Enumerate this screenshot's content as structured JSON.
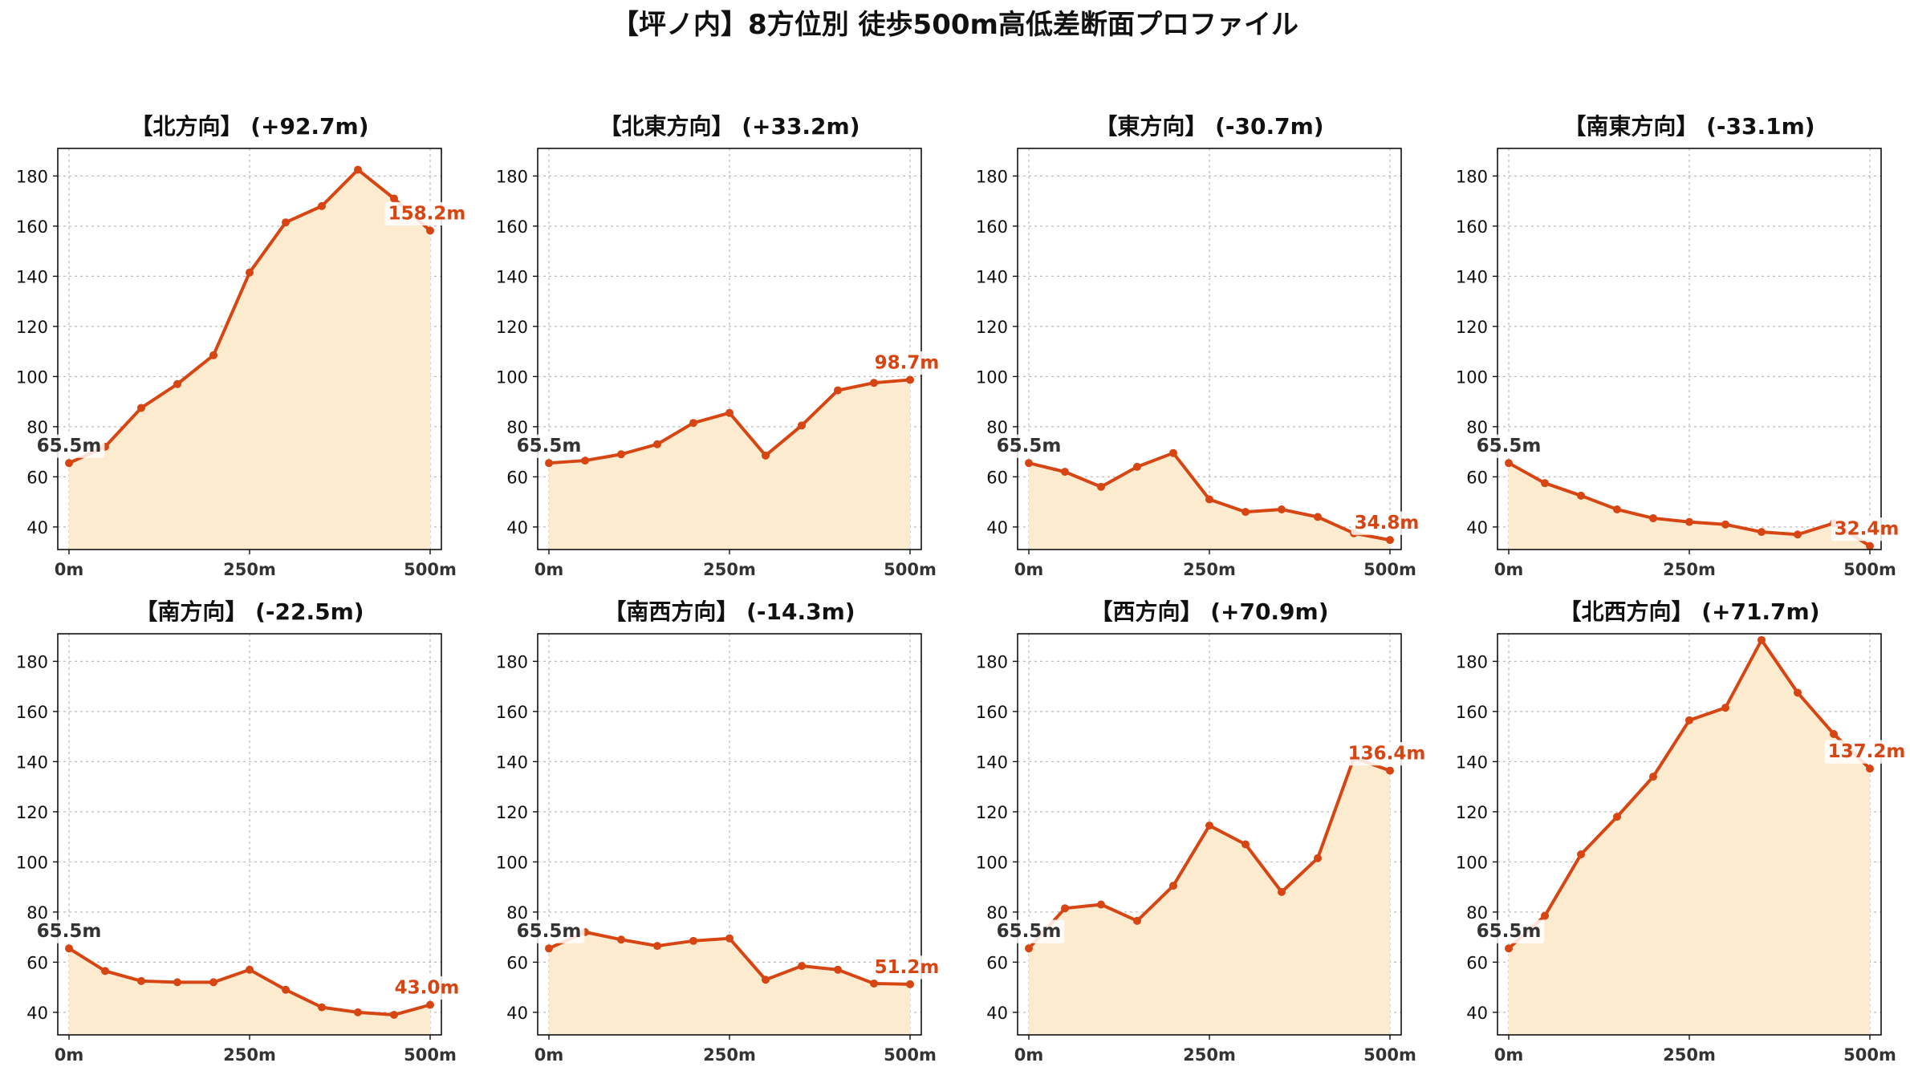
{
  "title": "【坪ノ内】8方位別 徒歩500m高低差断面プロファイル",
  "style": {
    "line_color": "#d64512",
    "fill_color": "#fdebd0",
    "grid_color": "#bbbbbb",
    "start_label_color": "#333333"
  },
  "chart_data": [
    {
      "type": "area",
      "title": "【北方向】 (+92.7m)",
      "x": [
        0,
        50,
        100,
        150,
        200,
        250,
        300,
        350,
        400,
        450,
        500
      ],
      "values": [
        65.5,
        72.0,
        87.5,
        97.0,
        108.5,
        141.5,
        161.5,
        168.0,
        182.5,
        171.0,
        158.2
      ],
      "xticks": [
        "0m",
        "250m",
        "500m"
      ],
      "yticks": [
        40,
        60,
        80,
        100,
        120,
        140,
        160,
        180
      ],
      "ylim": [
        31,
        191
      ],
      "start_label": "65.5m",
      "end_label": "158.2m",
      "grid": true
    },
    {
      "type": "area",
      "title": "【北東方向】 (+33.2m)",
      "x": [
        0,
        50,
        100,
        150,
        200,
        250,
        300,
        350,
        400,
        450,
        500
      ],
      "values": [
        65.5,
        66.5,
        69.0,
        73.0,
        81.5,
        85.5,
        68.5,
        80.5,
        94.5,
        97.5,
        98.7
      ],
      "xticks": [
        "0m",
        "250m",
        "500m"
      ],
      "yticks": [
        40,
        60,
        80,
        100,
        120,
        140,
        160,
        180
      ],
      "ylim": [
        31,
        191
      ],
      "start_label": "65.5m",
      "end_label": "98.7m",
      "grid": true
    },
    {
      "type": "area",
      "title": "【東方向】 (-30.7m)",
      "x": [
        0,
        50,
        100,
        150,
        200,
        250,
        300,
        350,
        400,
        450,
        500
      ],
      "values": [
        65.5,
        62.0,
        56.0,
        64.0,
        69.5,
        51.0,
        46.0,
        47.0,
        44.0,
        37.5,
        34.8
      ],
      "xticks": [
        "0m",
        "250m",
        "500m"
      ],
      "yticks": [
        40,
        60,
        80,
        100,
        120,
        140,
        160,
        180
      ],
      "ylim": [
        31,
        191
      ],
      "start_label": "65.5m",
      "end_label": "34.8m",
      "grid": true
    },
    {
      "type": "area",
      "title": "【南東方向】 (-33.1m)",
      "x": [
        0,
        50,
        100,
        150,
        200,
        250,
        300,
        350,
        400,
        450,
        500
      ],
      "values": [
        65.5,
        57.5,
        52.5,
        47.0,
        43.5,
        42.0,
        41.0,
        38.0,
        37.0,
        41.5,
        32.4
      ],
      "xticks": [
        "0m",
        "250m",
        "500m"
      ],
      "yticks": [
        40,
        60,
        80,
        100,
        120,
        140,
        160,
        180
      ],
      "ylim": [
        31,
        191
      ],
      "start_label": "65.5m",
      "end_label": "32.4m",
      "grid": true
    },
    {
      "type": "area",
      "title": "【南方向】 (-22.5m)",
      "x": [
        0,
        50,
        100,
        150,
        200,
        250,
        300,
        350,
        400,
        450,
        500
      ],
      "values": [
        65.5,
        56.5,
        52.5,
        52.0,
        52.0,
        57.0,
        49.0,
        42.0,
        40.0,
        39.0,
        43.0
      ],
      "xticks": [
        "0m",
        "250m",
        "500m"
      ],
      "yticks": [
        40,
        60,
        80,
        100,
        120,
        140,
        160,
        180
      ],
      "ylim": [
        31,
        191
      ],
      "start_label": "65.5m",
      "end_label": "43.0m",
      "grid": true
    },
    {
      "type": "area",
      "title": "【南西方向】 (-14.3m)",
      "x": [
        0,
        50,
        100,
        150,
        200,
        250,
        300,
        350,
        400,
        450,
        500
      ],
      "values": [
        65.5,
        72.0,
        69.0,
        66.5,
        68.5,
        69.5,
        53.0,
        58.5,
        57.0,
        51.5,
        51.2
      ],
      "xticks": [
        "0m",
        "250m",
        "500m"
      ],
      "yticks": [
        40,
        60,
        80,
        100,
        120,
        140,
        160,
        180
      ],
      "ylim": [
        31,
        191
      ],
      "start_label": "65.5m",
      "end_label": "51.2m",
      "grid": true
    },
    {
      "type": "area",
      "title": "【西方向】 (+70.9m)",
      "x": [
        0,
        50,
        100,
        150,
        200,
        250,
        300,
        350,
        400,
        450,
        500
      ],
      "values": [
        65.5,
        81.5,
        83.0,
        76.5,
        90.5,
        114.5,
        107.0,
        88.0,
        101.5,
        141.5,
        136.4
      ],
      "xticks": [
        "0m",
        "250m",
        "500m"
      ],
      "yticks": [
        40,
        60,
        80,
        100,
        120,
        140,
        160,
        180
      ],
      "ylim": [
        31,
        191
      ],
      "start_label": "65.5m",
      "end_label": "136.4m",
      "grid": true
    },
    {
      "type": "area",
      "title": "【北西方向】 (+71.7m)",
      "x": [
        0,
        50,
        100,
        150,
        200,
        250,
        300,
        350,
        400,
        450,
        500
      ],
      "values": [
        65.5,
        78.5,
        103.0,
        118.0,
        134.0,
        156.5,
        161.5,
        188.5,
        167.5,
        151.0,
        137.2
      ],
      "xticks": [
        "0m",
        "250m",
        "500m"
      ],
      "yticks": [
        40,
        60,
        80,
        100,
        120,
        140,
        160,
        180
      ],
      "ylim": [
        31,
        191
      ],
      "start_label": "65.5m",
      "end_label": "137.2m",
      "grid": true
    }
  ]
}
